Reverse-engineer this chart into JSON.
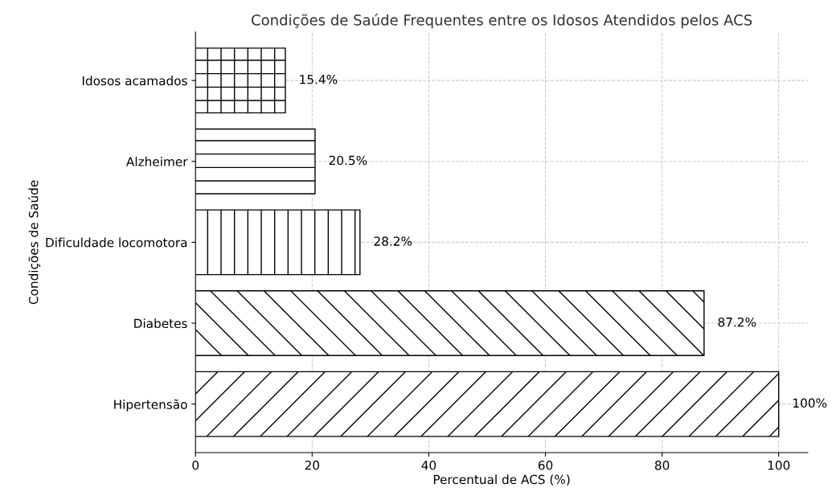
{
  "chart_data": {
    "type": "bar",
    "orientation": "horizontal",
    "title": "Condições de Saúde Frequentes entre os Idosos Atendidos pelos ACS",
    "xlabel": "Percentual de ACS (%)",
    "ylabel": "Condições de Saúde",
    "categories": [
      "Idosos acamados",
      "Alzheimer",
      "Dificuldade locomotora",
      "Diabetes",
      "Hipertensão"
    ],
    "values": [
      15.4,
      20.5,
      28.2,
      87.2,
      100
    ],
    "value_labels": [
      "15.4%",
      "20.5%",
      "28.2%",
      "87.2%",
      "100%"
    ],
    "color": "#000000",
    "xlim": [
      0,
      105
    ],
    "xticks": [
      0,
      20,
      40,
      60,
      80,
      100
    ],
    "grid": true
  }
}
